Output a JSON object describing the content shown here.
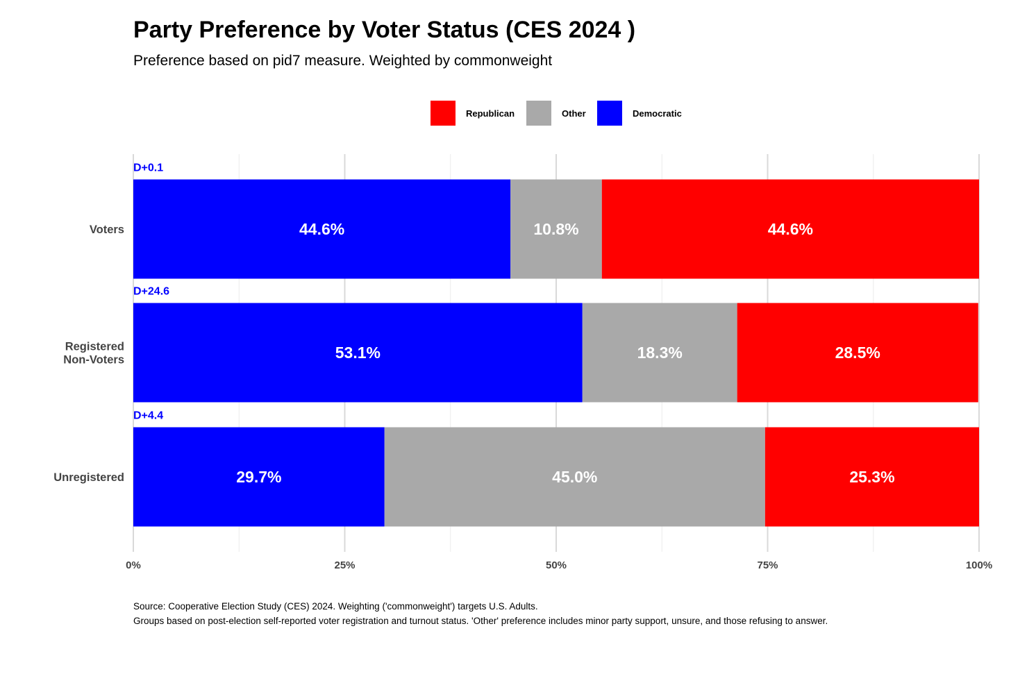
{
  "chart_data": {
    "type": "bar",
    "orientation": "horizontal",
    "stacked": true,
    "title": "Party Preference by Voter Status (CES 2024 )",
    "subtitle": "Preference based on pid7 measure. Weighted by commonweight",
    "categories": [
      [
        "Voters"
      ],
      [
        "Registered",
        "Non-Voters"
      ],
      [
        "Unregistered"
      ]
    ],
    "series": [
      {
        "name": "Democratic",
        "color": "#0000ff",
        "values": [
          44.6,
          53.1,
          29.7
        ],
        "labels": [
          "44.6%",
          "53.1%",
          "29.7%"
        ]
      },
      {
        "name": "Other",
        "color": "#a9a9a9",
        "values": [
          10.8,
          18.3,
          45.0
        ],
        "labels": [
          "10.8%",
          "18.3%",
          "45.0%"
        ]
      },
      {
        "name": "Republican",
        "color": "#ff0000",
        "values": [
          44.6,
          28.5,
          25.3
        ],
        "labels": [
          "44.6%",
          "28.5%",
          "25.3%"
        ]
      }
    ],
    "margins": [
      "D+0.1",
      "D+24.6",
      "D+4.4"
    ],
    "legend": {
      "position": "top",
      "order": [
        "Republican",
        "Other",
        "Democratic"
      ]
    },
    "xlim": [
      0,
      100
    ],
    "xticks": [
      0,
      25,
      50,
      75,
      100
    ],
    "xtick_labels": [
      "0%",
      "25%",
      "50%",
      "75%",
      "100%"
    ],
    "grid": true,
    "colors": {
      "margin_text": "#0000ff",
      "axis_text": "#444444",
      "grid_major": "#d9d9d9",
      "grid_minor": "#ececec"
    }
  },
  "caption": {
    "line1": "Source: Cooperative Election Study (CES) 2024. Weighting ('commonweight') targets U.S. Adults.",
    "line2": "Groups based on post-election self-reported voter registration and turnout status. 'Other' preference includes minor party support, unsure, and those refusing to answer."
  }
}
